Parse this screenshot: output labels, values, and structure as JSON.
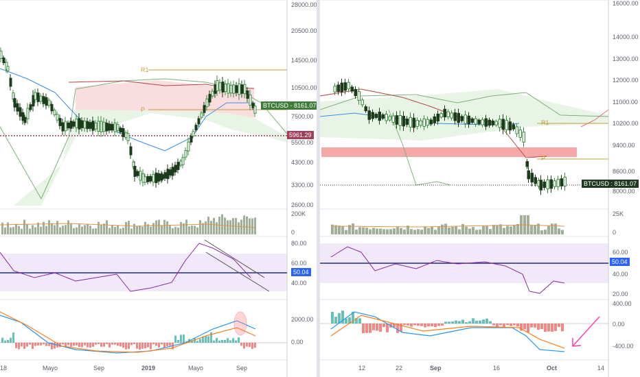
{
  "left_chart": {
    "price_axis": [
      "28000.00",
      "20500.00",
      "14500.00",
      "10500.00",
      "7500.00",
      "5500.00",
      "4300.00",
      "3300.00",
      "2600.00"
    ],
    "volume_axis": [
      "200K",
      "0"
    ],
    "rsi_axis": [
      "80.00",
      "60.00",
      "40.00"
    ],
    "macd_axis": [
      "2000.00",
      "0.00"
    ],
    "time_axis": [
      "18",
      "Mayo",
      "Sep",
      "2019",
      "Mayo",
      "Sep"
    ],
    "pivot_labels": [
      "R1",
      "P"
    ],
    "price_tag": {
      "symbol": "BTCUSD",
      "price": "8161.07",
      "color": "#3f7c3a"
    },
    "level_tag": {
      "price": "5961.29",
      "color": "#a23d5c"
    },
    "rsi_tag": {
      "value": "50.04",
      "color": "#2962ff"
    }
  },
  "right_chart": {
    "price_axis": [
      "16000.00",
      "14000.00",
      "13000.00",
      "12000.00",
      "11000.00",
      "10200.00",
      "9400.00",
      "8600.00",
      "8000.00"
    ],
    "volume_axis": [
      "25K",
      "0"
    ],
    "rsi_axis": [
      "60.00",
      "40.00",
      "20.00"
    ],
    "macd_axis": [
      "400.00",
      "0.00",
      "-400.00"
    ],
    "time_axis": [
      "12",
      "22",
      "Sep",
      "16",
      "Oct",
      "14"
    ],
    "pivot_labels": [
      "R1",
      "P"
    ],
    "price_tag": {
      "symbol": "BTCUSD",
      "price": "8161.07",
      "color": "#1e3a1e"
    },
    "rsi_tag": {
      "value": "50.04",
      "color": "#2962ff"
    }
  },
  "colors": {
    "bull": "#3d8c40",
    "bear": "#1b3b1b",
    "rsi_line": "#8e24aa",
    "rsi_band": "#e8d8f5",
    "macd_line": "#2196f3",
    "signal_line": "#ff7d1a",
    "hist_pos": "#26a69a",
    "hist_neg": "#ef5350",
    "annotation": "#ff3fb0"
  }
}
